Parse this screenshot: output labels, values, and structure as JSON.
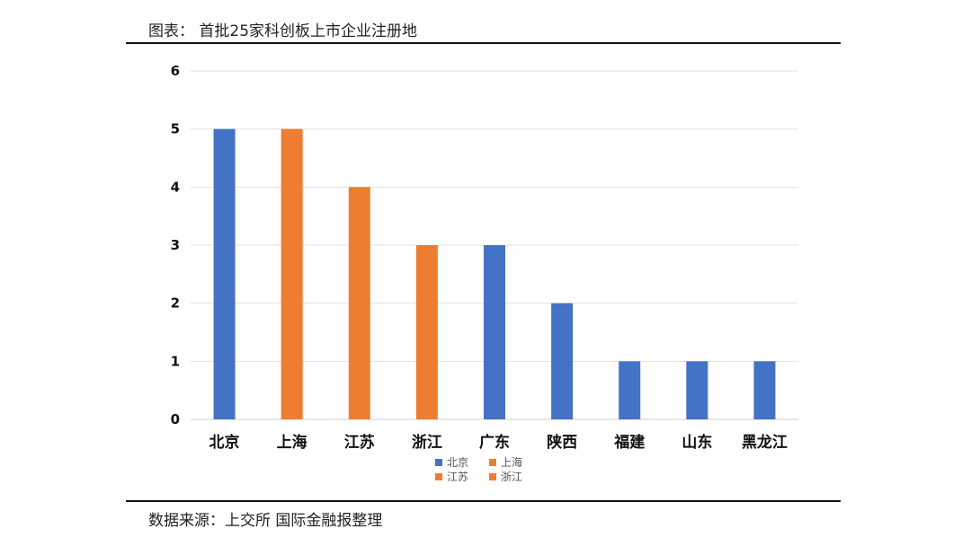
{
  "header": {
    "title": "图表： 首批25家科创板上市企业注册地"
  },
  "footer": {
    "source": "数据来源：上交所  国际金融报整理"
  },
  "colors": {
    "blue": "#4472C4",
    "orange": "#ED7D31",
    "grid": "#e2e2e2"
  },
  "chart_data": {
    "type": "bar",
    "title": "",
    "xlabel": "",
    "ylabel": "",
    "ylim": [
      0,
      6
    ],
    "yticks": [
      0,
      1,
      2,
      3,
      4,
      5,
      6
    ],
    "grid": true,
    "legend_position": "bottom",
    "categories": [
      "北京",
      "上海",
      "江苏",
      "浙江",
      "广东",
      "陕西",
      "福建",
      "山东",
      "黑龙江"
    ],
    "values": [
      5,
      5,
      4,
      3,
      3,
      2,
      1,
      1,
      1
    ],
    "bar_colors": [
      "#4472C4",
      "#ED7D31",
      "#ED7D31",
      "#ED7D31",
      "#4472C4",
      "#4472C4",
      "#4472C4",
      "#4472C4",
      "#4472C4"
    ],
    "legend": [
      {
        "label": "北京",
        "color": "#4472C4"
      },
      {
        "label": "上海",
        "color": "#ED7D31"
      },
      {
        "label": "江苏",
        "color": "#ED7D31"
      },
      {
        "label": "浙江",
        "color": "#ED7D31"
      }
    ]
  }
}
